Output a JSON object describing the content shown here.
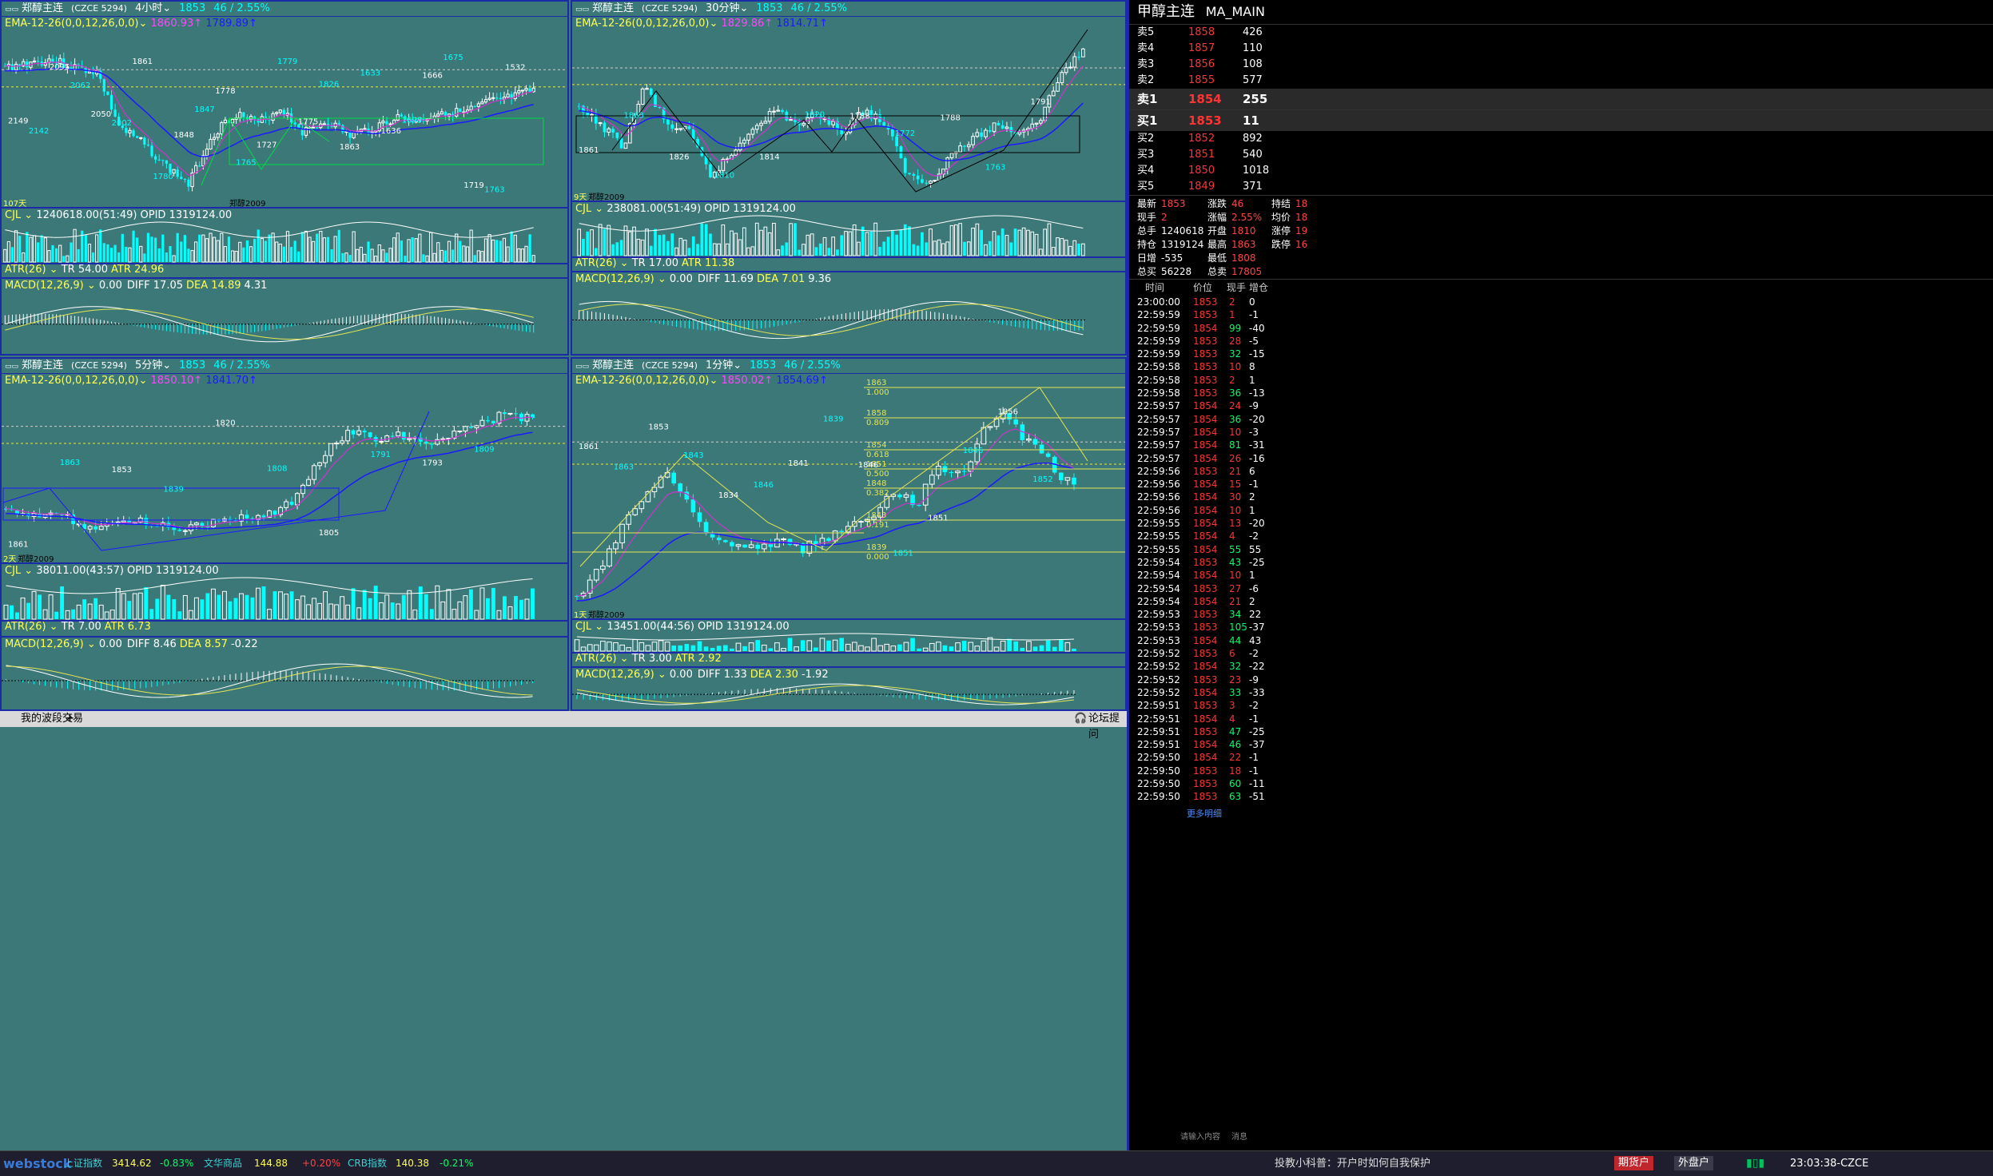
{
  "panes": [
    {
      "symbol": "郑醇主连",
      "code": "(CZCE 5294)",
      "period": "4小时",
      "last": "1853",
      "change": "46 / 2.55%",
      "ema": "EMA-12-26(0,0,12,26,0,0)",
      "ema1": "1860.93",
      "ema2": "1789.89",
      "cjl": "CJL",
      "cjl_val": "1240618.00(51:49)",
      "opid": "OPID 1319124.00",
      "atr": "ATR(26)",
      "tr": "TR 54.00",
      "atr_val": "ATR 24.96",
      "macd": "MACD(12,26,9)",
      "macd_zero": "0.00",
      "diff": "DIFF 17.05",
      "dea": "DEA 14.89",
      "macd_val": "4.31",
      "days": "107天",
      "footer_label": "郑醇2009",
      "price_labels": [
        "2149",
        "2142",
        "2095",
        "2062",
        "2050",
        "2002",
        "1861",
        "1780",
        "1848",
        "1847",
        "1778",
        "1765",
        "1727",
        "1779",
        "1775",
        "1826",
        "1863",
        "1633",
        "1636",
        "1698",
        "1666",
        "1675",
        "1719",
        "1763",
        "1532"
      ]
    },
    {
      "symbol": "郑醇主连",
      "code": "(CZCE 5294)",
      "period": "30分钟",
      "last": "1853",
      "change": "46 / 2.55%",
      "ema": "EMA-12-26(0,0,12,26,0,0)",
      "ema1": "1829.86",
      "ema2": "1814.71",
      "cjl": "CJL",
      "cjl_val": "238081.00(51:49)",
      "opid": "OPID 1319124.00",
      "atr": "ATR(26)",
      "tr": "TR 17.00",
      "atr_val": "ATR 11.38",
      "macd": "MACD(12,26,9)",
      "macd_zero": "0.00",
      "diff": "DIFF 11.69",
      "dea": "DEA 7.01",
      "macd_val": "9.36",
      "days": "9天",
      "footer_label": "郑醇2009",
      "price_labels": [
        "1861",
        "1863",
        "1826",
        "1810",
        "1814",
        "1820",
        "1788",
        "1772",
        "1788",
        "1763",
        "1791"
      ]
    },
    {
      "symbol": "郑醇主连",
      "code": "(CZCE 5294)",
      "period": "5分钟",
      "last": "1853",
      "change": "46 / 2.55%",
      "ema": "EMA-12-26(0,0,12,26,0,0)",
      "ema1": "1850.10",
      "ema2": "1841.70",
      "cjl": "CJL",
      "cjl_val": "38011.00(43:57)",
      "opid": "OPID 1319124.00",
      "atr": "ATR(26)",
      "tr": "TR 7.00",
      "atr_val": "ATR 6.73",
      "macd": "MACD(12,26,9)",
      "macd_zero": "0.00",
      "diff": "DIFF 8.46",
      "dea": "DEA 8.57",
      "macd_val": "-0.22",
      "days": "2天",
      "footer_label": "郑醇2009",
      "price_labels": [
        "1861",
        "1863",
        "1853",
        "1839",
        "1820",
        "1808",
        "1805",
        "1791",
        "1793",
        "1809"
      ]
    },
    {
      "symbol": "郑醇主连",
      "code": "(CZCE 5294)",
      "period": "1分钟",
      "last": "1853",
      "change": "46 / 2.55%",
      "ema": "EMA-12-26(0,0,12,26,0,0)",
      "ema1": "1850.02",
      "ema2": "1854.69",
      "cjl": "CJL",
      "cjl_val": "13451.00(44:56)",
      "opid": "OPID 1319124.00",
      "atr": "ATR(26)",
      "tr": "TR 3.00",
      "atr_val": "ATR 2.92",
      "macd": "MACD(12,26,9)",
      "macd_zero": "0.00",
      "diff": "DIFF 1.33",
      "dea": "DEA 2.30",
      "macd_val": "-1.92",
      "days": "1天",
      "footer_label": "郑醇2009",
      "price_labels": [
        "1861",
        "1863",
        "1853",
        "1843",
        "1834",
        "1846",
        "1841",
        "1839",
        "1846",
        "1851",
        "1851",
        "1846",
        "1856",
        "1852"
      ],
      "fib": [
        {
          "p": "1863",
          "r": "1.000"
        },
        {
          "p": "1858",
          "r": "0.809"
        },
        {
          "p": "1854",
          "r": "0.618"
        },
        {
          "p": "1851",
          "r": "0.500"
        },
        {
          "p": "1848",
          "r": "0.382"
        },
        {
          "p": "1843",
          "r": "0.191"
        },
        {
          "p": "1839",
          "r": "0.000"
        }
      ]
    }
  ],
  "quote": {
    "name": "甲醇主连",
    "code": "MA_MAIN",
    "asks": [
      {
        "l": "卖5",
        "p": "1858",
        "v": "426"
      },
      {
        "l": "卖4",
        "p": "1857",
        "v": "110"
      },
      {
        "l": "卖3",
        "p": "1856",
        "v": "108"
      },
      {
        "l": "卖2",
        "p": "1855",
        "v": "577"
      },
      {
        "l": "卖1",
        "p": "1854",
        "v": "255"
      }
    ],
    "bids": [
      {
        "l": "买1",
        "p": "1853",
        "v": "11"
      },
      {
        "l": "买2",
        "p": "1852",
        "v": "892"
      },
      {
        "l": "买3",
        "p": "1851",
        "v": "540"
      },
      {
        "l": "买4",
        "p": "1850",
        "v": "1018"
      },
      {
        "l": "买5",
        "p": "1849",
        "v": "371"
      }
    ],
    "stats": [
      [
        "最新",
        "1853",
        "涨跌",
        "46",
        "持结",
        "18"
      ],
      [
        "现手",
        "2",
        "涨幅",
        "2.55%",
        "均价",
        "18"
      ],
      [
        "总手",
        "1240618",
        "开盘",
        "1810",
        "涨停",
        "19"
      ],
      [
        "持仓",
        "1319124",
        "最高",
        "1863",
        "跌停",
        "16"
      ],
      [
        "日增",
        "-535",
        "最低",
        "1808",
        "",
        ""
      ],
      [
        "总买",
        "56228",
        "总卖",
        "17805",
        "",
        ""
      ]
    ],
    "tick_headers": [
      "时间",
      "价位",
      "现手",
      "增仓"
    ],
    "ticks": [
      [
        "23:00:00",
        "1853",
        "2",
        "0"
      ],
      [
        "22:59:59",
        "1853",
        "1",
        "-1"
      ],
      [
        "22:59:59",
        "1854",
        "99",
        "-40"
      ],
      [
        "22:59:59",
        "1853",
        "28",
        "-5"
      ],
      [
        "22:59:59",
        "1853",
        "32",
        "-15"
      ],
      [
        "22:59:58",
        "1853",
        "10",
        "8"
      ],
      [
        "22:59:58",
        "1853",
        "2",
        "1"
      ],
      [
        "22:59:58",
        "1853",
        "36",
        "-13"
      ],
      [
        "22:59:57",
        "1854",
        "24",
        "-9"
      ],
      [
        "22:59:57",
        "1854",
        "36",
        "-20"
      ],
      [
        "22:59:57",
        "1854",
        "10",
        "-3"
      ],
      [
        "22:59:57",
        "1854",
        "81",
        "-31"
      ],
      [
        "22:59:57",
        "1854",
        "26",
        "-16"
      ],
      [
        "22:59:56",
        "1853",
        "21",
        "6"
      ],
      [
        "22:59:56",
        "1854",
        "15",
        "-1"
      ],
      [
        "22:59:56",
        "1854",
        "30",
        "2"
      ],
      [
        "22:59:56",
        "1854",
        "10",
        "1"
      ],
      [
        "22:59:55",
        "1854",
        "13",
        "-20"
      ],
      [
        "22:59:55",
        "1854",
        "4",
        "-2"
      ],
      [
        "22:59:55",
        "1854",
        "55",
        "55"
      ],
      [
        "22:59:54",
        "1853",
        "43",
        "-25"
      ],
      [
        "22:59:54",
        "1854",
        "10",
        "1"
      ],
      [
        "22:59:54",
        "1853",
        "27",
        "-6"
      ],
      [
        "22:59:54",
        "1854",
        "21",
        "2"
      ],
      [
        "22:59:53",
        "1853",
        "34",
        "22"
      ],
      [
        "22:59:53",
        "1853",
        "105",
        "-37"
      ],
      [
        "22:59:53",
        "1854",
        "44",
        "43"
      ],
      [
        "22:59:52",
        "1853",
        "6",
        "-2"
      ],
      [
        "22:59:52",
        "1854",
        "32",
        "-22"
      ],
      [
        "22:59:52",
        "1853",
        "23",
        "-9"
      ],
      [
        "22:59:52",
        "1854",
        "33",
        "-33"
      ],
      [
        "22:59:51",
        "1853",
        "3",
        "-2"
      ],
      [
        "22:59:51",
        "1854",
        "4",
        "-1"
      ],
      [
        "22:59:51",
        "1853",
        "47",
        "-25"
      ],
      [
        "22:59:51",
        "1854",
        "46",
        "-37"
      ],
      [
        "22:59:50",
        "1854",
        "22",
        "-1"
      ],
      [
        "22:59:50",
        "1853",
        "18",
        "-1"
      ],
      [
        "22:59:50",
        "1853",
        "60",
        "-11"
      ],
      [
        "22:59:50",
        "1853",
        "63",
        "-51"
      ]
    ],
    "more": "更多明细"
  },
  "tabs": {
    "current": "我的波段交易",
    "add": "+",
    "forum": "论坛提问"
  },
  "status": {
    "logo": "webstock",
    "indices": [
      {
        "name": "上证指数",
        "val": "3414.62",
        "chg": "-0.83%"
      },
      {
        "name": "文华商品",
        "val": "144.88",
        "chg": "+0.20%"
      },
      {
        "name": "CRB指数",
        "val": "140.38",
        "chg": "-0.21%"
      }
    ],
    "tip": "投教小科普：开户时如何自我保护",
    "acct1": "期货户",
    "acct2": "外盘户",
    "time": "23:03:38-CZCE",
    "input_hint": "请输入内容",
    "msg": "消息"
  },
  "colors": {
    "bg": "#3d7879",
    "border": "#1b2aa6",
    "up": "#ffffff",
    "down": "#00ffff",
    "ema1": "#cc33cc",
    "ema2": "#1a1aff",
    "fib": "#e5e552"
  }
}
